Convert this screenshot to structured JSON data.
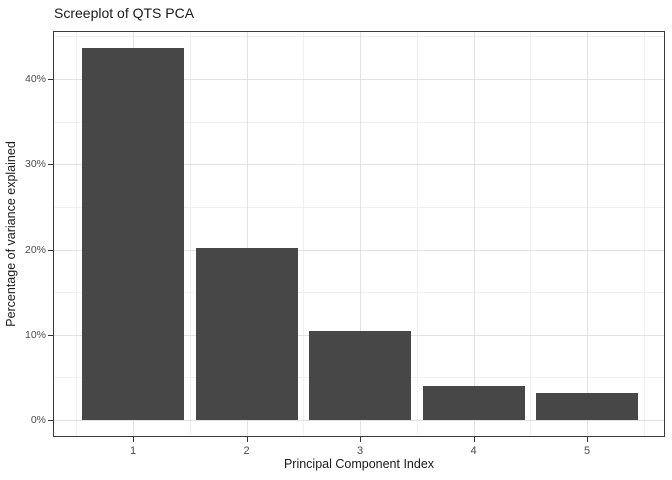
{
  "chart_data": {
    "type": "bar",
    "title": "Screeplot of QTS PCA",
    "xlabel": "Principal Component Index",
    "ylabel": "Percentage of variance explained",
    "categories": [
      "1",
      "2",
      "3",
      "4",
      "5"
    ],
    "values": [
      43.6,
      20.2,
      10.4,
      4.0,
      3.2
    ],
    "y_ticks": [
      {
        "value": 0,
        "label": "0%"
      },
      {
        "value": 10,
        "label": "10%"
      },
      {
        "value": 20,
        "label": "20%"
      },
      {
        "value": 30,
        "label": "30%"
      },
      {
        "value": 40,
        "label": "40%"
      }
    ],
    "y_minor_ticks": [
      5,
      15,
      25,
      35,
      45
    ],
    "ylim": [
      0,
      45.7
    ],
    "grid": "major+minor",
    "legend_position": "none",
    "colors": {
      "bar_fill": "#474747",
      "panel_border": "#3a3a3a",
      "grid_major": "#e2e2e2",
      "grid_minor": "#f0f0f0",
      "axis_text": "#4d4d4d",
      "title_text": "#1a1a1a"
    }
  }
}
